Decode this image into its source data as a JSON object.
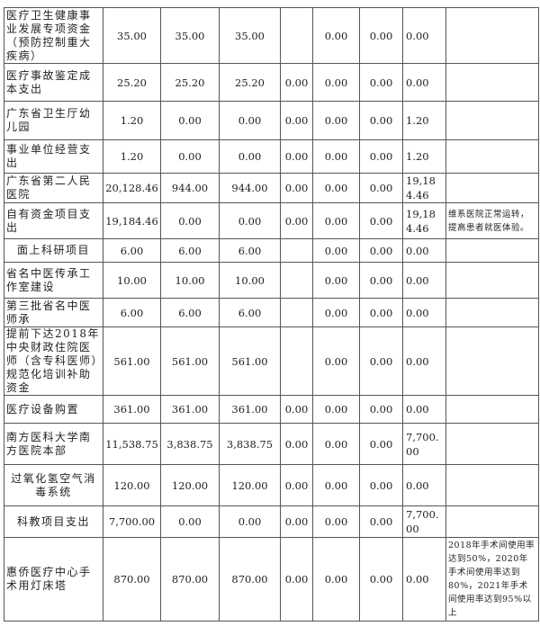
{
  "table": {
    "rows": [
      {
        "name": "医疗卫生健康事业发展专项资金（预防控制重大疾病）",
        "c1": "35.00",
        "c2": "35.00",
        "c3": "35.00",
        "c4": "",
        "c5": "0.00",
        "c6": "0.00",
        "c7": "0.00",
        "note": ""
      },
      {
        "name": "医疗事故鉴定成本支出",
        "c1": "25.20",
        "c2": "25.20",
        "c3": "25.20",
        "c4": "0.00",
        "c5": "0.00",
        "c6": "0.00",
        "c7": "0.00",
        "note": ""
      },
      {
        "name": "广东省卫生厅幼儿园",
        "c1": "1.20",
        "c2": "0.00",
        "c3": "0.00",
        "c4": "0.00",
        "c5": "0.00",
        "c6": "0.00",
        "c7": "1.20",
        "note": ""
      },
      {
        "name": "事业单位经营支出",
        "c1": "1.20",
        "c2": "0.00",
        "c3": "0.00",
        "c4": "0.00",
        "c5": "0.00",
        "c6": "0.00",
        "c7": "1.20",
        "note": ""
      },
      {
        "name": "广东省第二人民医院",
        "c1": "20,128.46",
        "c2": "944.00",
        "c3": "944.00",
        "c4": "0.00",
        "c5": "0.00",
        "c6": "0.00",
        "c7": "19,184.46",
        "note": ""
      },
      {
        "name": "自有资金项目支出",
        "c1": "19,184.46",
        "c2": "0.00",
        "c3": "0.00",
        "c4": "0.00",
        "c5": "0.00",
        "c6": "0.00",
        "c7": "19,184.46",
        "note": "维系医院正常运转，提高患者就医体验。"
      },
      {
        "name": "面上科研项目",
        "c1": "6.00",
        "c2": "6.00",
        "c3": "6.00",
        "c4": "",
        "c5": "0.00",
        "c6": "0.00",
        "c7": "0.00",
        "note": ""
      },
      {
        "name": "省名中医传承工作室建设",
        "c1": "10.00",
        "c2": "10.00",
        "c3": "10.00",
        "c4": "",
        "c5": "0.00",
        "c6": "0.00",
        "c7": "0.00",
        "note": ""
      },
      {
        "name": "第三批省名中医师承",
        "c1": "6.00",
        "c2": "6.00",
        "c3": "6.00",
        "c4": "",
        "c5": "0.00",
        "c6": "0.00",
        "c7": "0.00",
        "note": ""
      },
      {
        "name": "提前下达2018年中央财政住院医师（含专科医师）规范化培训补助资金",
        "c1": "561.00",
        "c2": "561.00",
        "c3": "561.00",
        "c4": "",
        "c5": "0.00",
        "c6": "0.00",
        "c7": "0.00",
        "note": ""
      },
      {
        "name": "医疗设备购置",
        "c1": "361.00",
        "c2": "361.00",
        "c3": "361.00",
        "c4": "0.00",
        "c5": "0.00",
        "c6": "0.00",
        "c7": "0.00",
        "note": ""
      },
      {
        "name": "南方医科大学南方医院本部",
        "c1": "11,538.75",
        "c2": "3,838.75",
        "c3": "3,838.75",
        "c4": "0.00",
        "c5": "0.00",
        "c6": "0.00",
        "c7": "7,700.00",
        "note": ""
      },
      {
        "name": "过氧化氢空气消毒系统",
        "c1": "120.00",
        "c2": "120.00",
        "c3": "120.00",
        "c4": "0.00",
        "c5": "0.00",
        "c6": "0.00",
        "c7": "0.00",
        "note": ""
      },
      {
        "name": "科教项目支出",
        "c1": "7,700.00",
        "c2": "0.00",
        "c3": "0.00",
        "c4": "0.00",
        "c5": "0.00",
        "c6": "0.00",
        "c7": "7,700.00",
        "note": ""
      },
      {
        "name": "惠侨医疗中心手术用灯床塔",
        "c1": "870.00",
        "c2": "870.00",
        "c3": "870.00",
        "c4": "0.00",
        "c5": "0.00",
        "c6": "0.00",
        "c7": "0.00",
        "note": "2018年手术间使用率达到50%，2020年手术间使用率达到80%，2021年手术间使用率达到95%以上"
      }
    ]
  }
}
